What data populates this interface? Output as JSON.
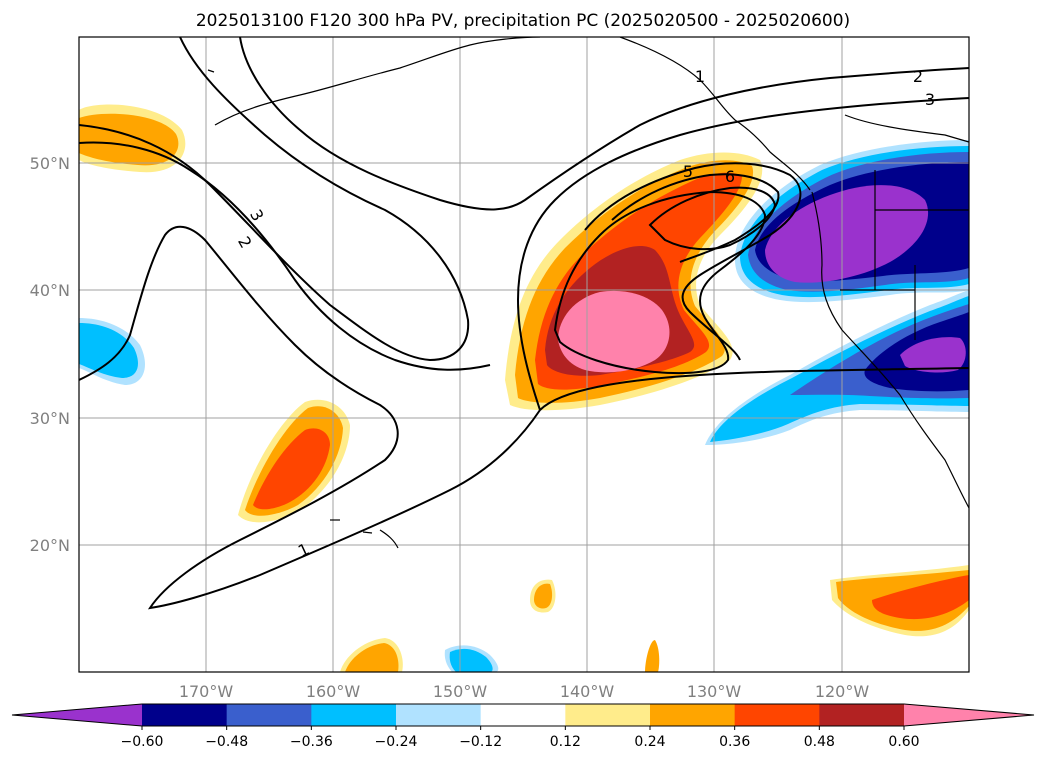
{
  "title": "2025013100 F120 300 hPa PV, precipitation PC (2025020500 - 2025020600)",
  "map": {
    "lon_labels": [
      "170°W",
      "160°W",
      "150°W",
      "140°W",
      "130°W",
      "120°W"
    ],
    "lat_labels": [
      "50°N",
      "40°N",
      "30°N",
      "20°N"
    ],
    "contour_labels": [
      "1",
      "1",
      "2",
      "2",
      "3",
      "3",
      "5",
      "6"
    ]
  },
  "colorbar": {
    "colors": [
      "#9A32CD",
      "#00008B",
      "#3A5FCD",
      "#00BFFF",
      "#B0E2FF",
      "#FFFFFF",
      "#FFEC8B",
      "#FFA500",
      "#FF4500",
      "#B22222",
      "#FF82AB"
    ],
    "tick_labels": [
      "−0.60",
      "−0.48",
      "−0.36",
      "−0.24",
      "−0.12",
      "0.12",
      "0.24",
      "0.36",
      "0.48",
      "0.60"
    ]
  }
}
